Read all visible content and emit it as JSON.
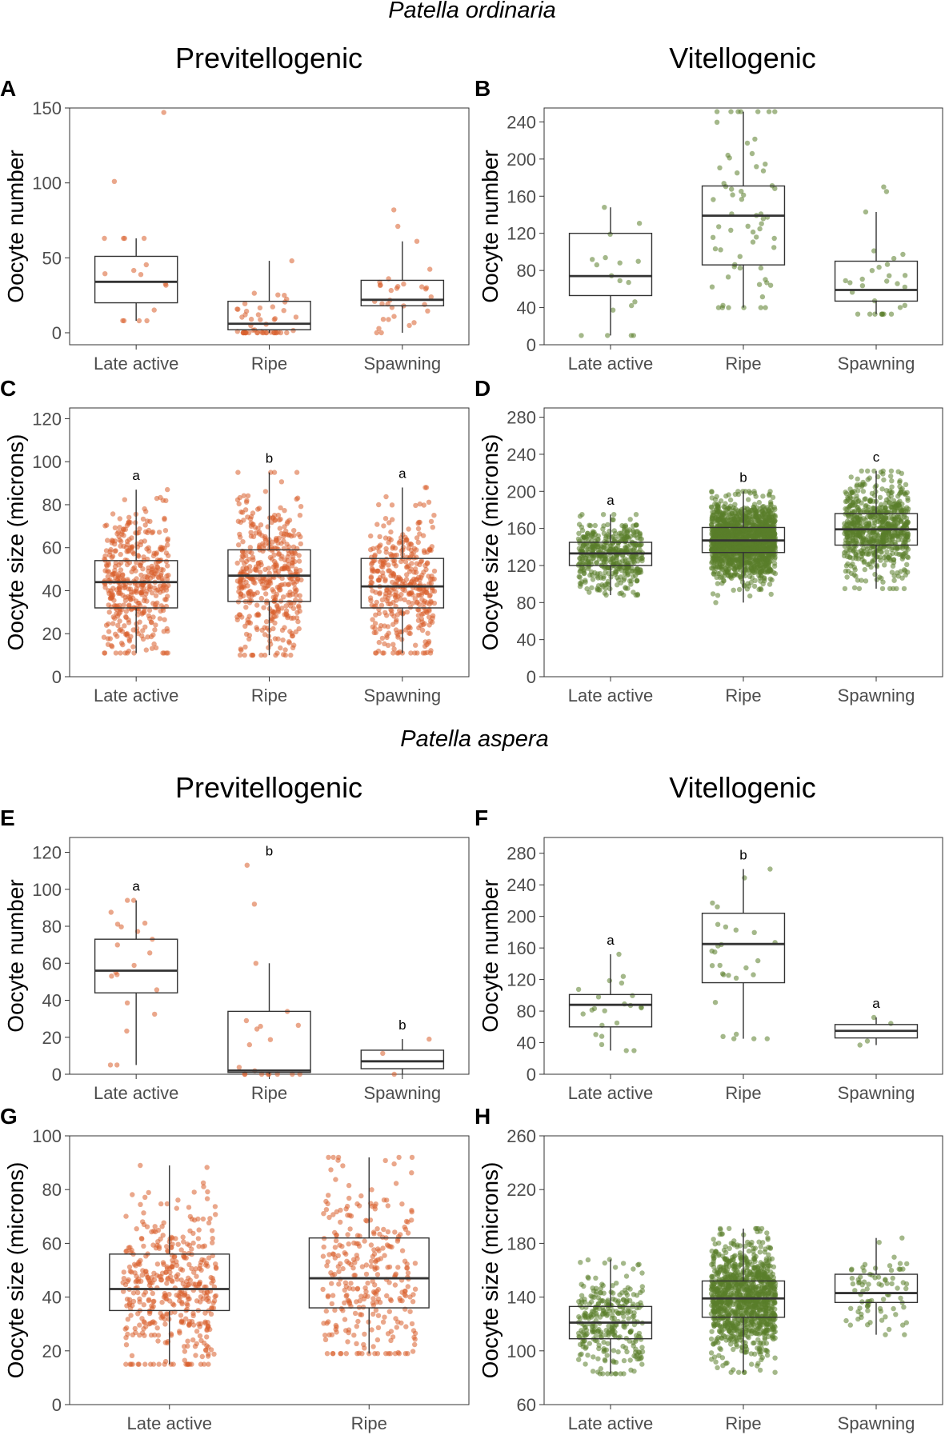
{
  "figure": {
    "species_top": "Patella ordinaria",
    "species_bottom": "Patella aspera",
    "col_left_title": "Previtellogenic",
    "col_right_title": "Vitellogenic",
    "col_left_title_2": "Previtellogenic",
    "col_right_title_2": "Vitellogenic"
  },
  "colors": {
    "previtellogenic": "#d95f2b",
    "vitellogenic": "#5a7d2a",
    "box": "#333333"
  },
  "chart_data": [
    {
      "panel": "A",
      "type": "box",
      "ylabel": "Oocyte number",
      "series_color": "previtellogenic",
      "ylim": [
        -8,
        150
      ],
      "yticks": [
        0,
        50,
        100,
        150
      ],
      "categories": [
        "Late active",
        "Ripe",
        "Spawning"
      ],
      "boxes": [
        {
          "low": 8,
          "q1": 20,
          "median": 34,
          "q3": 51,
          "high": 63,
          "n_points": 15,
          "outliers": [
            101,
            147
          ]
        },
        {
          "low": 0,
          "q1": 2,
          "median": 6,
          "q3": 21,
          "high": 48,
          "n_points": 50,
          "outliers": []
        },
        {
          "low": 0,
          "q1": 18,
          "median": 22,
          "q3": 35,
          "high": 61,
          "n_points": 30,
          "outliers": [
            71,
            82
          ]
        }
      ],
      "sig_letters": []
    },
    {
      "panel": "B",
      "type": "box",
      "ylabel": "Oocyte number",
      "series_color": "vitellogenic",
      "ylim": [
        0,
        255
      ],
      "yticks": [
        0,
        40,
        80,
        120,
        160,
        200,
        240
      ],
      "categories": [
        "Late active",
        "Ripe",
        "Spawning"
      ],
      "boxes": [
        {
          "low": 10,
          "q1": 53,
          "median": 74,
          "q3": 120,
          "high": 148,
          "n_points": 18,
          "outliers": []
        },
        {
          "low": 40,
          "q1": 86,
          "median": 139,
          "q3": 171,
          "high": 251,
          "n_points": 65,
          "outliers": []
        },
        {
          "low": 33,
          "q1": 47,
          "median": 59,
          "q3": 90,
          "high": 143,
          "n_points": 28,
          "outliers": [
            170,
            165
          ]
        }
      ],
      "sig_letters": []
    },
    {
      "panel": "C",
      "type": "box",
      "ylabel": "Oocyte size (microns)",
      "series_color": "previtellogenic",
      "ylim": [
        0,
        125
      ],
      "yticks": [
        0,
        20,
        40,
        60,
        80,
        100,
        120
      ],
      "categories": [
        "Late active",
        "Ripe",
        "Spawning"
      ],
      "boxes": [
        {
          "low": 11,
          "q1": 32,
          "median": 44,
          "q3": 54,
          "high": 87,
          "n_points": 420,
          "outliers": []
        },
        {
          "low": 10,
          "q1": 35,
          "median": 47,
          "q3": 59,
          "high": 95,
          "n_points": 420,
          "outliers": []
        },
        {
          "low": 11,
          "q1": 32,
          "median": 42,
          "q3": 55,
          "high": 88,
          "n_points": 380,
          "outliers": []
        }
      ],
      "sig_letters": [
        "a",
        "b",
        "a"
      ]
    },
    {
      "panel": "D",
      "type": "box",
      "ylabel": "Oocyte size (microns)",
      "series_color": "vitellogenic",
      "ylim": [
        0,
        290
      ],
      "yticks": [
        0,
        40,
        80,
        120,
        160,
        200,
        240,
        280
      ],
      "categories": [
        "Late active",
        "Ripe",
        "Spawning"
      ],
      "boxes": [
        {
          "low": 88,
          "q1": 120,
          "median": 133,
          "q3": 145,
          "high": 175,
          "n_points": 450,
          "outliers": []
        },
        {
          "low": 80,
          "q1": 134,
          "median": 147,
          "q3": 161,
          "high": 200,
          "n_points": 1600,
          "outliers": []
        },
        {
          "low": 95,
          "q1": 142,
          "median": 159,
          "q3": 176,
          "high": 222,
          "n_points": 700,
          "outliers": []
        }
      ],
      "sig_letters": [
        "a",
        "b",
        "c"
      ]
    },
    {
      "panel": "E",
      "type": "box",
      "ylabel": "Oocyte number",
      "series_color": "previtellogenic",
      "ylim": [
        0,
        128
      ],
      "yticks": [
        0,
        20,
        40,
        60,
        80,
        100,
        120
      ],
      "categories": [
        "Late active",
        "Ripe",
        "Spawning"
      ],
      "boxes": [
        {
          "low": 5,
          "q1": 44,
          "median": 56,
          "q3": 73,
          "high": 94,
          "n_points": 20,
          "outliers": []
        },
        {
          "low": 0,
          "q1": 1,
          "median": 2,
          "q3": 34,
          "high": 60,
          "n_points": 18,
          "outliers": [
            113,
            92
          ]
        },
        {
          "low": 0,
          "q1": 3,
          "median": 7,
          "q3": 13,
          "high": 19,
          "n_points": 3,
          "outliers": []
        }
      ],
      "sig_letters": [
        "a",
        "b",
        "b"
      ]
    },
    {
      "panel": "F",
      "type": "box",
      "ylabel": "Oocyte number",
      "series_color": "vitellogenic",
      "ylim": [
        0,
        300
      ],
      "yticks": [
        0,
        40,
        80,
        120,
        160,
        200,
        240,
        280
      ],
      "categories": [
        "Late active",
        "Ripe",
        "Spawning"
      ],
      "boxes": [
        {
          "low": 30,
          "q1": 60,
          "median": 88,
          "q3": 101,
          "high": 152,
          "n_points": 22,
          "outliers": []
        },
        {
          "low": 45,
          "q1": 116,
          "median": 165,
          "q3": 204,
          "high": 260,
          "n_points": 28,
          "outliers": []
        },
        {
          "low": 37,
          "q1": 46,
          "median": 55,
          "q3": 63,
          "high": 72,
          "n_points": 4,
          "outliers": []
        }
      ],
      "sig_letters": [
        "a",
        "b",
        "a"
      ]
    },
    {
      "panel": "G",
      "type": "box",
      "ylabel": "Oocyte size (microns)",
      "series_color": "previtellogenic",
      "ylim": [
        0,
        100
      ],
      "yticks": [
        0,
        20,
        40,
        60,
        80,
        100
      ],
      "categories": [
        "Late active",
        "Ripe"
      ],
      "boxes": [
        {
          "low": 15,
          "q1": 35,
          "median": 43,
          "q3": 56,
          "high": 89,
          "n_points": 420,
          "outliers": []
        },
        {
          "low": 19,
          "q1": 36,
          "median": 47,
          "q3": 62,
          "high": 92,
          "n_points": 300,
          "outliers": []
        }
      ],
      "sig_letters": []
    },
    {
      "panel": "H",
      "type": "box",
      "ylabel": "Oocyte size (microns)",
      "series_color": "vitellogenic",
      "ylim": [
        60,
        260
      ],
      "yticks": [
        60,
        100,
        140,
        180,
        220,
        260
      ],
      "categories": [
        "Late active",
        "Ripe",
        "Spawning"
      ],
      "boxes": [
        {
          "low": 83,
          "q1": 109,
          "median": 121,
          "q3": 133,
          "high": 168,
          "n_points": 300,
          "outliers": []
        },
        {
          "low": 84,
          "q1": 125,
          "median": 139,
          "q3": 152,
          "high": 191,
          "n_points": 1100,
          "outliers": []
        },
        {
          "low": 112,
          "q1": 136,
          "median": 143,
          "q3": 157,
          "high": 184,
          "n_points": 80,
          "outliers": []
        }
      ],
      "sig_letters": []
    }
  ]
}
